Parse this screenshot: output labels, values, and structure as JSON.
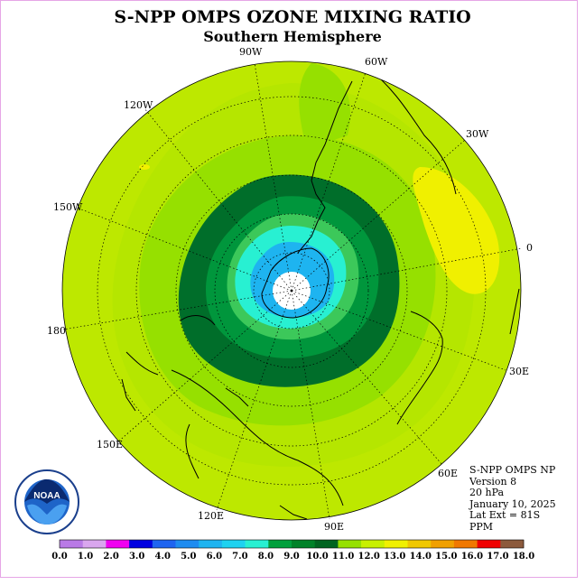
{
  "title": "S-NPP OMPS OZONE MIXING RATIO",
  "subtitle": "Southern Hemisphere",
  "longitude_labels": [
    {
      "id": "90w",
      "text": "90W"
    },
    {
      "id": "60w",
      "text": "60W"
    },
    {
      "id": "30w",
      "text": "30W"
    },
    {
      "id": "0",
      "text": "0"
    },
    {
      "id": "30e",
      "text": "30E"
    },
    {
      "id": "60e",
      "text": "60E"
    },
    {
      "id": "90e",
      "text": "90E"
    },
    {
      "id": "120e",
      "text": "120E"
    },
    {
      "id": "150e",
      "text": "150E"
    },
    {
      "id": "180",
      "text": "180"
    },
    {
      "id": "150w",
      "text": "150W"
    },
    {
      "id": "120w",
      "text": "120W"
    }
  ],
  "info": {
    "instrument": "S-NPP OMPS NP",
    "version": "Version 8",
    "level": "20 hPa",
    "date": "January 10, 2025",
    "lat_ext": "Lat Ext = 81S",
    "units": "PPM"
  },
  "logo_text": "NOAA",
  "logo_ring_text": "NATIONAL OCEANIC AND ATMOSPHERIC ADMINISTRATION",
  "colorbar": {
    "labels": [
      "0.0",
      "1.0",
      "2.0",
      "3.0",
      "4.0",
      "5.0",
      "6.0",
      "7.0",
      "8.0",
      "9.0",
      "10.0",
      "11.0",
      "12.0",
      "13.0",
      "14.0",
      "15.0",
      "16.0",
      "17.0",
      "18.0"
    ],
    "colors": [
      "#b97ae6",
      "#d9a6ee",
      "#f000f0",
      "#0000e0",
      "#1e64f0",
      "#1e8cf0",
      "#1eb4f0",
      "#1ed2f0",
      "#28f0d2",
      "#00a03c",
      "#008228",
      "#006420",
      "#96e000",
      "#c8f000",
      "#f0f000",
      "#f0c800",
      "#f0a000",
      "#f07800",
      "#f00000",
      "#8c5a3c"
    ]
  },
  "colors": {
    "background_field": "#bde800",
    "band_11": "#96e000",
    "band_10": "#006e2a",
    "band_9": "#00963c",
    "band_8": "#3cc85a",
    "band_7": "#28f0d2",
    "band_6": "#1eb4f0",
    "high_patch": "#f0f000"
  }
}
